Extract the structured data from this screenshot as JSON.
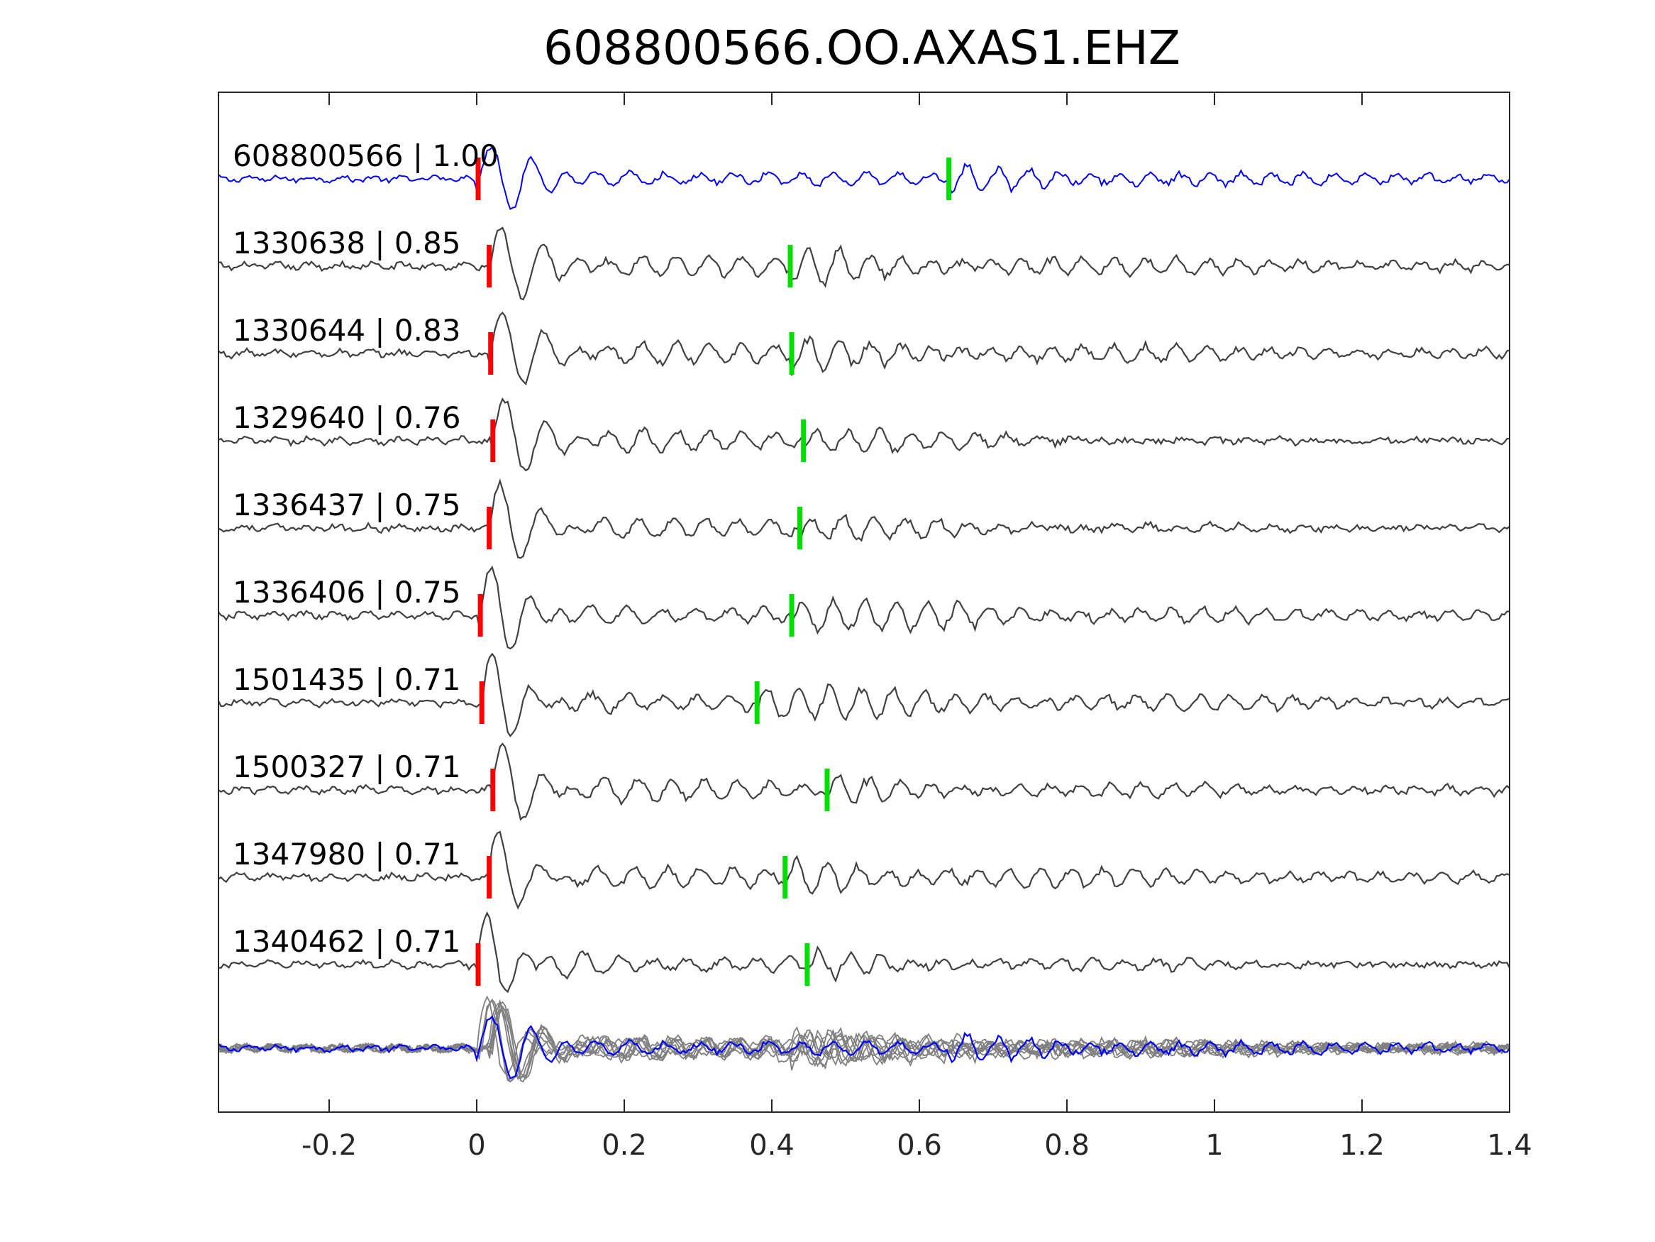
{
  "chart_data": {
    "type": "line",
    "title": "608800566.OO.AXAS1.EHZ",
    "xlabel": "",
    "ylabel": "",
    "xlim": [
      -0.35,
      1.4
    ],
    "xticks": [
      "-0.2",
      "0",
      "0.2",
      "0.4",
      "0.6",
      "0.8",
      "1",
      "1.2",
      "1.4"
    ],
    "xtick_values": [
      -0.2,
      0,
      0.2,
      0.4,
      0.6,
      0.8,
      1,
      1.2,
      1.4
    ],
    "grid": false,
    "legend": "none",
    "traces": [
      {
        "label": "608800566 | 1.00",
        "id": "608800566",
        "correlation": 1.0,
        "color": "#0000ff",
        "p_pick": 0.0,
        "s_pick": 0.64,
        "is_template": true
      },
      {
        "label": "1330638 | 0.85",
        "id": "1330638",
        "correlation": 0.85,
        "color": "#404040",
        "p_pick": 0.015,
        "s_pick": 0.425
      },
      {
        "label": "1330644 | 0.83",
        "id": "1330644",
        "correlation": 0.83,
        "color": "#404040",
        "p_pick": 0.017,
        "s_pick": 0.427
      },
      {
        "label": "1329640 | 0.76",
        "id": "1329640",
        "correlation": 0.76,
        "color": "#404040",
        "p_pick": 0.02,
        "s_pick": 0.443
      },
      {
        "label": "1336437 | 0.75",
        "id": "1336437",
        "correlation": 0.75,
        "color": "#404040",
        "p_pick": 0.015,
        "s_pick": 0.438
      },
      {
        "label": "1336406 | 0.75",
        "id": "1336406",
        "correlation": 0.75,
        "color": "#404040",
        "p_pick": 0.003,
        "s_pick": 0.427
      },
      {
        "label": "1501435 | 0.71",
        "id": "1501435",
        "correlation": 0.71,
        "color": "#404040",
        "p_pick": 0.005,
        "s_pick": 0.38
      },
      {
        "label": "1500327 | 0.71",
        "id": "1500327",
        "correlation": 0.71,
        "color": "#404040",
        "p_pick": 0.02,
        "s_pick": 0.475
      },
      {
        "label": "1347980 | 0.71",
        "id": "1347980",
        "correlation": 0.71,
        "color": "#404040",
        "p_pick": 0.015,
        "s_pick": 0.418
      },
      {
        "label": "1340462 | 0.71",
        "id": "1340462",
        "correlation": 0.71,
        "color": "#404040",
        "p_pick": 0.0,
        "s_pick": 0.448
      }
    ],
    "stack": {
      "overlay_color": "#808080",
      "template_color": "#0000ff"
    },
    "pick_colors": {
      "p": "#ff0000",
      "s": "#00dd00"
    }
  }
}
